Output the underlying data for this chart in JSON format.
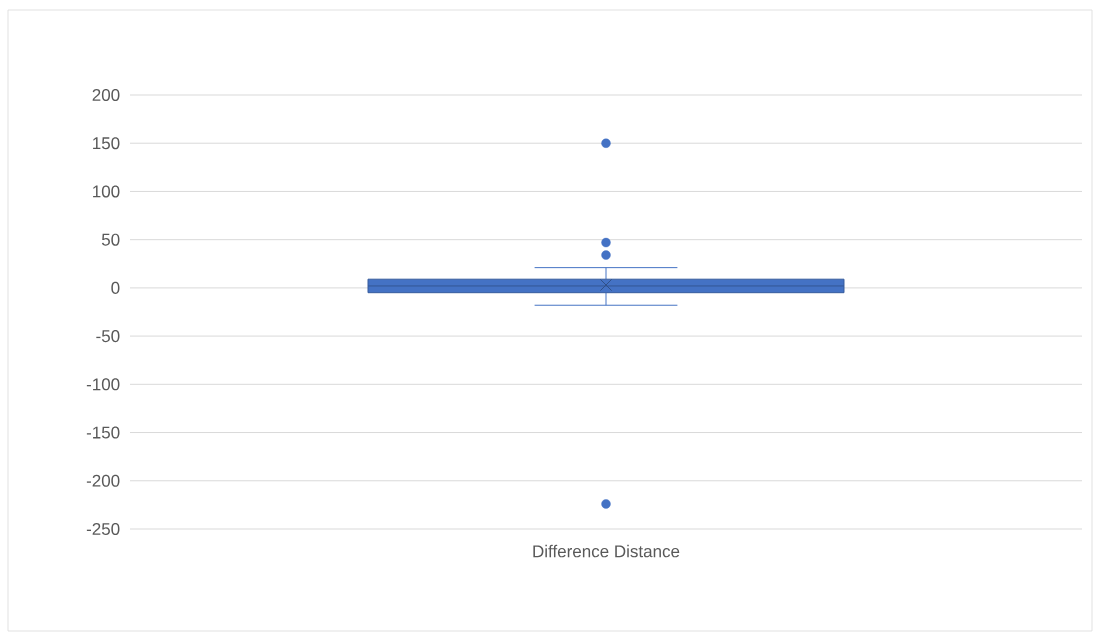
{
  "chart_data": {
    "type": "box",
    "categories": [
      "Difference Distance"
    ],
    "boxes": [
      {
        "low": -18,
        "q1": -5,
        "median": 2,
        "q3": 9,
        "high": 21,
        "mean": 3,
        "outliers": [
          150,
          47,
          34,
          -224
        ]
      }
    ],
    "color": "#4472c4",
    "ylim": [
      -250,
      200
    ],
    "yticks": [
      -250,
      -200,
      -150,
      -100,
      -50,
      0,
      50,
      100,
      150,
      200
    ],
    "grid": "y"
  }
}
